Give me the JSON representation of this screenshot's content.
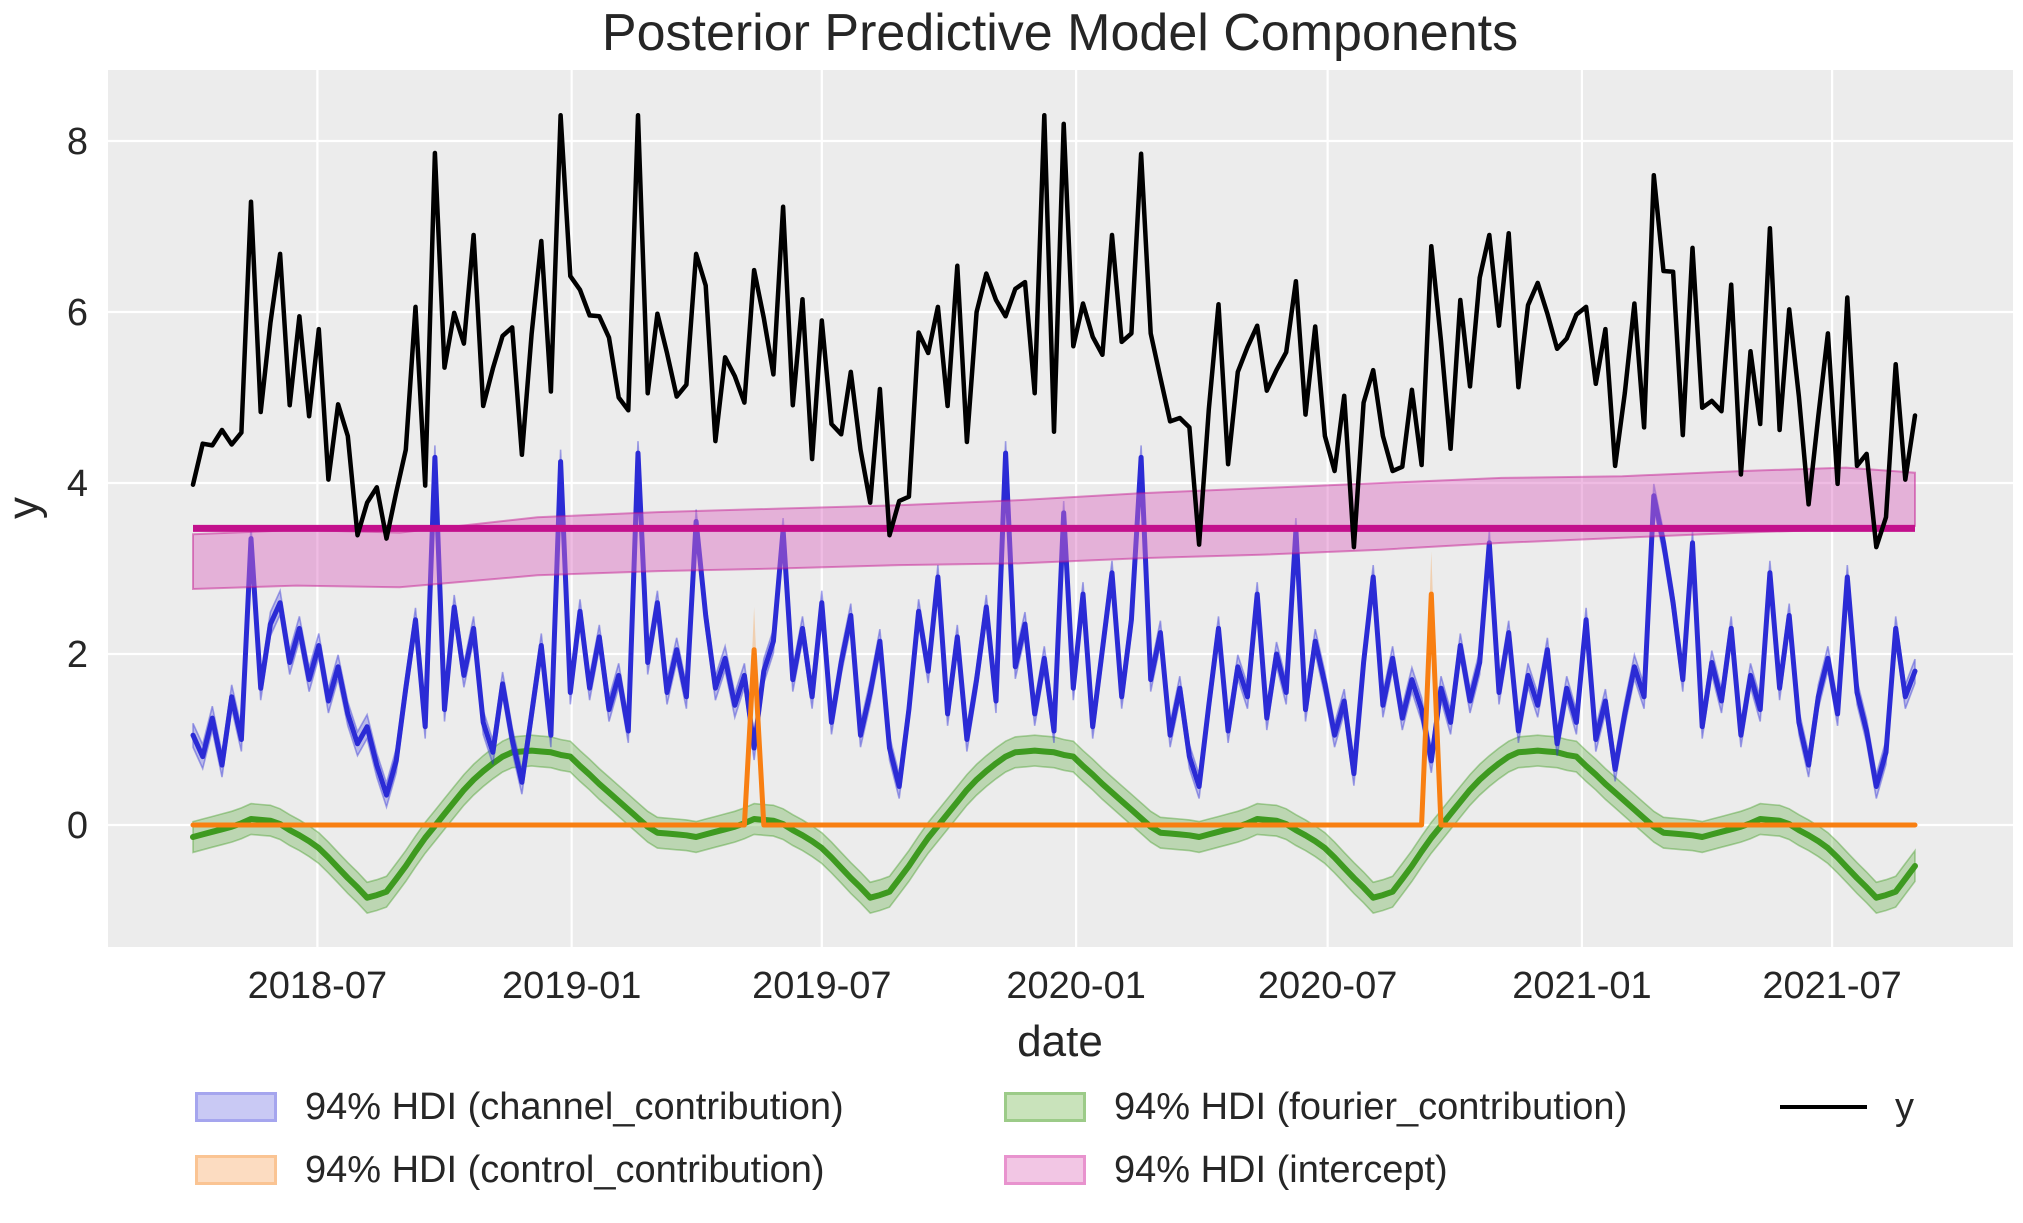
{
  "title": "Posterior Predictive Model Components",
  "xlabel": "date",
  "ylabel": "y",
  "chart_data": {
    "type": "line",
    "grid": true,
    "background": "#ECECEC",
    "grid_color": "#FFFFFF",
    "x_start": "2018-04-02",
    "x_step_days": 7,
    "n": 179,
    "span_days": 1246,
    "ylim": [
      -1.43,
      8.85
    ],
    "y_ticks": [
      0,
      2,
      4,
      6,
      8
    ],
    "x_ticks": [
      {
        "label": "2018-07",
        "day": 90
      },
      {
        "label": "2019-01",
        "day": 274
      },
      {
        "label": "2019-07",
        "day": 455
      },
      {
        "label": "2020-01",
        "day": 639
      },
      {
        "label": "2020-07",
        "day": 821
      },
      {
        "label": "2021-01",
        "day": 1005
      },
      {
        "label": "2021-07",
        "day": 1186
      }
    ],
    "draw_order": [
      "fourier_contribution",
      "channel_contribution",
      "control_contribution",
      "intercept",
      "y"
    ],
    "series": {
      "y": {
        "name": "y",
        "type": "line",
        "color": "#000000",
        "line_width": 4.5,
        "values": [
          3.98,
          4.46,
          4.44,
          4.62,
          4.45,
          4.59,
          7.29,
          4.83,
          5.87,
          6.68,
          4.91,
          5.95,
          4.78,
          5.8,
          4.04,
          4.92,
          4.55,
          3.39,
          3.77,
          3.95,
          3.35,
          3.89,
          4.39,
          6.06,
          3.97,
          7.86,
          5.35,
          5.99,
          5.63,
          6.9,
          4.9,
          5.34,
          5.72,
          5.82,
          4.33,
          5.74,
          6.83,
          5.07,
          8.3,
          6.42,
          6.26,
          5.96,
          5.95,
          5.7,
          5.0,
          4.85,
          8.3,
          5.05,
          5.98,
          5.52,
          5.01,
          5.15,
          6.68,
          6.31,
          4.49,
          5.47,
          5.25,
          4.94,
          6.49,
          5.93,
          5.27,
          7.23,
          4.91,
          6.15,
          4.28,
          5.9,
          4.69,
          4.57,
          5.3,
          4.39,
          3.77,
          5.1,
          3.39,
          3.79,
          3.84,
          5.76,
          5.52,
          6.06,
          4.9,
          6.54,
          4.48,
          6.0,
          6.45,
          6.14,
          5.95,
          6.27,
          6.35,
          5.05,
          8.3,
          4.6,
          8.2,
          5.6,
          6.1,
          5.71,
          5.5,
          6.9,
          5.65,
          5.75,
          7.85,
          5.75,
          5.23,
          4.72,
          4.76,
          4.65,
          3.28,
          4.86,
          6.09,
          4.22,
          5.3,
          5.59,
          5.84,
          5.08,
          5.32,
          5.53,
          6.36,
          4.8,
          5.83,
          4.55,
          4.14,
          5.02,
          3.25,
          4.94,
          5.32,
          4.55,
          4.14,
          4.19,
          5.09,
          4.21,
          6.77,
          5.66,
          4.4,
          6.14,
          5.13,
          6.4,
          6.9,
          5.84,
          6.92,
          5.12,
          6.08,
          6.34,
          5.98,
          5.57,
          5.69,
          5.97,
          6.06,
          5.16,
          5.8,
          4.2,
          5.05,
          6.1,
          4.65,
          7.6,
          6.48,
          6.47,
          4.56,
          6.75,
          4.88,
          4.96,
          4.84,
          6.32,
          4.1,
          5.54,
          4.69,
          6.98,
          4.62,
          6.03,
          5.01,
          3.75,
          4.78,
          5.75,
          3.99,
          6.17,
          4.2,
          4.34,
          3.25,
          3.6,
          5.39,
          4.04,
          4.79
        ]
      },
      "channel_contribution": {
        "name": "94% HDI (channel_contribution)",
        "type": "line_band",
        "color": "#2B2BD5",
        "line_width": 5,
        "band_fill": "#4646E0",
        "band_opacity": 0.3,
        "band_half_width": 0.14,
        "values": [
          1.05,
          0.8,
          1.25,
          0.7,
          1.5,
          1.0,
          3.35,
          1.6,
          2.35,
          2.6,
          1.9,
          2.3,
          1.7,
          2.1,
          1.45,
          1.85,
          1.3,
          0.95,
          1.15,
          0.7,
          0.35,
          0.75,
          1.6,
          2.4,
          1.15,
          4.3,
          1.35,
          2.55,
          1.75,
          2.3,
          1.2,
          0.85,
          1.65,
          1.0,
          0.5,
          1.3,
          2.1,
          1.05,
          4.25,
          1.55,
          2.5,
          1.6,
          2.2,
          1.35,
          1.75,
          1.1,
          4.35,
          1.9,
          2.6,
          1.55,
          2.05,
          1.5,
          3.55,
          2.45,
          1.6,
          1.95,
          1.4,
          1.75,
          0.9,
          1.8,
          2.15,
          3.45,
          1.7,
          2.3,
          1.5,
          2.6,
          1.2,
          1.9,
          2.45,
          1.05,
          1.55,
          2.15,
          0.9,
          0.45,
          1.35,
          2.5,
          1.8,
          2.9,
          1.3,
          2.2,
          1.0,
          1.7,
          2.55,
          1.45,
          4.35,
          1.85,
          2.35,
          1.3,
          1.95,
          1.1,
          3.65,
          1.6,
          2.7,
          1.15,
          2.05,
          2.95,
          1.5,
          2.4,
          4.3,
          1.7,
          2.25,
          1.05,
          1.6,
          0.8,
          0.45,
          1.4,
          2.3,
          1.1,
          1.85,
          1.5,
          2.7,
          1.25,
          2.0,
          1.55,
          3.45,
          1.35,
          2.15,
          1.65,
          1.05,
          1.45,
          0.6,
          1.9,
          2.9,
          1.4,
          1.95,
          1.25,
          1.7,
          1.35,
          0.75,
          1.6,
          1.2,
          2.1,
          1.45,
          1.9,
          3.3,
          1.55,
          2.25,
          1.1,
          1.75,
          1.4,
          2.05,
          0.95,
          1.6,
          1.2,
          2.4,
          1.0,
          1.45,
          0.65,
          1.3,
          1.85,
          1.5,
          3.85,
          3.3,
          2.6,
          1.7,
          3.3,
          1.15,
          1.9,
          1.45,
          2.3,
          1.05,
          1.75,
          1.35,
          2.95,
          1.6,
          2.45,
          1.2,
          0.7,
          1.5,
          1.95,
          1.3,
          2.9,
          1.55,
          1.1,
          0.45,
          0.85,
          2.3,
          1.5,
          1.8
        ]
      },
      "control_contribution": {
        "name": "94% HDI (control_contribution)",
        "type": "sparse_spikes",
        "color": "#F87F12",
        "line_width": 5,
        "band_fill": "#FA9C42",
        "band_opacity": 0.35,
        "baseline": 0,
        "spikes": [
          {
            "week": 58,
            "mean": 2.05,
            "hi": 2.55,
            "lo": 1.75
          },
          {
            "week": 128,
            "mean": 2.7,
            "hi": 3.2,
            "lo": 2.35
          }
        ]
      },
      "fourier_contribution": {
        "name": "94% HDI (fourier_contribution)",
        "type": "line_band",
        "color": "#3E9A20",
        "line_width": 6,
        "band_fill": "#4DA32B",
        "band_opacity": 0.3,
        "band_half_width": 0.18,
        "values": [
          -0.14,
          -0.11,
          -0.08,
          -0.05,
          -0.02,
          0.02,
          0.07,
          0.06,
          0.05,
          0.01,
          -0.06,
          -0.12,
          -0.19,
          -0.27,
          -0.38,
          -0.5,
          -0.62,
          -0.73,
          -0.85,
          -0.82,
          -0.78,
          -0.63,
          -0.48,
          -0.31,
          -0.15,
          -0.01,
          0.13,
          0.27,
          0.41,
          0.53,
          0.63,
          0.72,
          0.8,
          0.85,
          0.86,
          0.87,
          0.86,
          0.85,
          0.82,
          0.8,
          0.69,
          0.59,
          0.48,
          0.38,
          0.28,
          0.18,
          0.08,
          -0.02,
          -0.09,
          -0.1,
          -0.11,
          -0.12,
          -0.14,
          -0.11,
          -0.08,
          -0.05,
          -0.02,
          0.02,
          0.07,
          0.06,
          0.05,
          0.01,
          -0.06,
          -0.12,
          -0.19,
          -0.27,
          -0.38,
          -0.5,
          -0.62,
          -0.73,
          -0.85,
          -0.82,
          -0.78,
          -0.63,
          -0.48,
          -0.31,
          -0.15,
          -0.01,
          0.13,
          0.27,
          0.41,
          0.53,
          0.63,
          0.72,
          0.8,
          0.85,
          0.86,
          0.87,
          0.86,
          0.85,
          0.82,
          0.8,
          0.69,
          0.59,
          0.48,
          0.38,
          0.28,
          0.18,
          0.08,
          -0.02,
          -0.09,
          -0.1,
          -0.11,
          -0.12,
          -0.14,
          -0.11,
          -0.08,
          -0.05,
          -0.02,
          0.02,
          0.07,
          0.06,
          0.05,
          0.01,
          -0.06,
          -0.12,
          -0.19,
          -0.27,
          -0.38,
          -0.5,
          -0.62,
          -0.73,
          -0.85,
          -0.82,
          -0.78,
          -0.63,
          -0.48,
          -0.31,
          -0.15,
          -0.01,
          0.13,
          0.27,
          0.41,
          0.53,
          0.63,
          0.72,
          0.8,
          0.85,
          0.86,
          0.87,
          0.86,
          0.85,
          0.82,
          0.8,
          0.69,
          0.59,
          0.48,
          0.38,
          0.28,
          0.18,
          0.08,
          -0.02,
          -0.09,
          -0.1,
          -0.11,
          -0.12,
          -0.14,
          -0.11,
          -0.08,
          -0.05,
          -0.02,
          0.02,
          0.07,
          0.06,
          0.05,
          0.01,
          -0.06,
          -0.12,
          -0.19,
          -0.27,
          -0.38,
          -0.5,
          -0.62,
          -0.73,
          -0.85,
          -0.82,
          -0.78,
          -0.63,
          -0.48
        ]
      },
      "intercept": {
        "name": "94% HDI (intercept)",
        "type": "const_band",
        "color": "#C2108C",
        "line_width": 7,
        "band_fill": "#DB6BC2",
        "band_opacity": 0.45,
        "mean": 3.47,
        "band_x_fraction": [
          0,
          0.06,
          0.12,
          0.2,
          0.27,
          0.34,
          0.41,
          0.48,
          0.55,
          0.62,
          0.69,
          0.76,
          0.83,
          0.9,
          0.96,
          1.0
        ],
        "band_lo": [
          2.76,
          2.8,
          2.78,
          2.92,
          2.97,
          3.0,
          3.04,
          3.06,
          3.12,
          3.16,
          3.22,
          3.3,
          3.36,
          3.42,
          3.46,
          3.5
        ],
        "band_hi": [
          3.4,
          3.45,
          3.42,
          3.6,
          3.66,
          3.7,
          3.74,
          3.8,
          3.88,
          3.94,
          4.0,
          4.06,
          4.08,
          4.14,
          4.18,
          4.12
        ]
      }
    }
  },
  "legend": {
    "items": [
      {
        "label": "94% HDI (channel_contribution)",
        "handle": "patch",
        "fill": "#C9C9F4",
        "border": "#A5A5EE"
      },
      {
        "label": "94% HDI (control_contribution)",
        "handle": "patch",
        "fill": "#FCDCC1",
        "border": "#FAC493"
      },
      {
        "label": "94% HDI (fourier_contribution)",
        "handle": "patch",
        "fill": "#C9E3BB",
        "border": "#9CCB88"
      },
      {
        "label": "94% HDI (intercept)",
        "handle": "patch",
        "fill": "#F2C6E4",
        "border": "#E893CE"
      },
      {
        "label": "y",
        "handle": "line",
        "color": "#000000"
      }
    ]
  }
}
